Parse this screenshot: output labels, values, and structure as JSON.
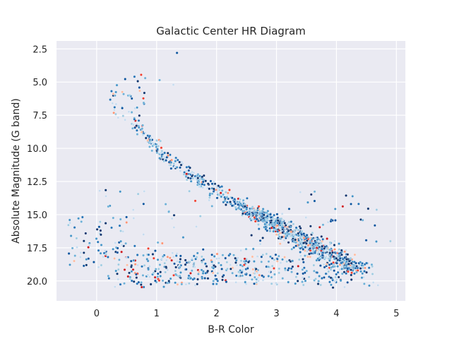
{
  "chart_data": {
    "type": "scatter",
    "title": "Galactic Center HR Diagram",
    "xlabel": "B-R Color",
    "ylabel": "Absolute Magnitude (G band)",
    "xlim": [
      -0.67,
      5.15
    ],
    "ylim": [
      21.5,
      1.9
    ],
    "y_inverted": true,
    "grid": true,
    "background": "#eaeaf2",
    "grid_color": "#ffffff",
    "x_ticks": [
      0,
      1,
      2,
      3,
      4,
      5
    ],
    "x_tick_labels": [
      "0",
      "1",
      "2",
      "3",
      "4",
      "5"
    ],
    "y_ticks": [
      2.5,
      5.0,
      7.5,
      10.0,
      12.5,
      15.0,
      17.5,
      20.0
    ],
    "y_tick_labels": [
      "2.5",
      "5.0",
      "7.5",
      "10.0",
      "12.5",
      "15.0",
      "17.5",
      "20.0"
    ],
    "point_palette": [
      "#08306b",
      "#08519c",
      "#2171b5",
      "#4292c6",
      "#6baed6",
      "#9ecae1",
      "#c6dbef",
      "#fcbba1",
      "#fc9272",
      "#ef3b2c",
      "#cb181d"
    ],
    "components": [
      {
        "kind": "main_sequence",
        "x": [
          0.6,
          1.0,
          1.5,
          2.0,
          2.5,
          3.0,
          3.5,
          3.8,
          4.1,
          4.4
        ],
        "y": [
          8.0,
          10.0,
          11.8,
          13.2,
          14.5,
          15.8,
          17.0,
          17.8,
          18.6,
          19.2
        ],
        "count": 1150
      },
      {
        "kind": "lower_scatter",
        "x": [
          0.3,
          4.1
        ],
        "y": [
          18.0,
          20.3
        ],
        "count": 380
      },
      {
        "kind": "white_dwarf_band",
        "x": [
          -0.5,
          0.5
        ],
        "y": [
          15.0,
          19.0
        ],
        "count": 60
      },
      {
        "kind": "upper_stragglers",
        "x": [
          0.2,
          0.8
        ],
        "y": [
          4.3,
          8.0
        ],
        "count": 40
      },
      {
        "kind": "field_scatter",
        "x": [
          0.0,
          4.8
        ],
        "y": [
          13.0,
          20.5
        ],
        "count": 140
      }
    ],
    "points": [
      {
        "x": 1.34,
        "y": 2.8
      },
      {
        "x": 0.81,
        "y": 4.7
      },
      {
        "x": 1.05,
        "y": 4.85
      },
      {
        "x": 1.28,
        "y": 5.2
      },
      {
        "x": 0.55,
        "y": 6.0
      },
      {
        "x": 0.3,
        "y": 6.9
      },
      {
        "x": 3.0,
        "y": 16.5
      },
      {
        "x": 2.5,
        "y": 14.6
      },
      {
        "x": 4.9,
        "y": 17.0
      },
      {
        "x": -0.45,
        "y": 15.4
      }
    ]
  }
}
